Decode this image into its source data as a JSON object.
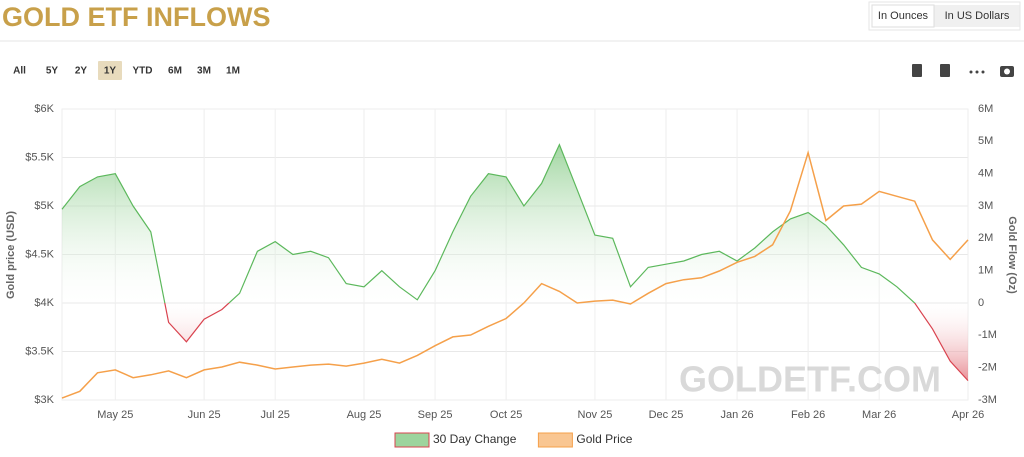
{
  "chart_data": {
    "type": "area-line",
    "title": "GOLD ETF INFLOWS",
    "y_label": "Gold price (USD)",
    "y2_label": "Gold Flow (Oz)",
    "watermark": "GOLDETF.COM",
    "categories": [
      null,
      null,
      null,
      "May 25",
      null,
      null,
      null,
      null,
      "Jun 25",
      null,
      null,
      null,
      "Jul 25",
      null,
      null,
      null,
      null,
      "Aug 25",
      null,
      null,
      null,
      "Sep 25",
      null,
      null,
      null,
      "Oct 25",
      null,
      null,
      null,
      null,
      "Nov 25",
      null,
      null,
      null,
      "Dec 25",
      null,
      null,
      null,
      "Jan 26",
      null,
      null,
      null,
      "Feb 26",
      null,
      null,
      null,
      "Mar 26",
      null,
      null,
      null,
      null,
      "Apr 26"
    ],
    "series": [
      {
        "name": "30 Day Change",
        "color": "#5cb85c",
        "negative_color": "#d9434f",
        "axis": "y2",
        "style": "area",
        "values": [
          2900000,
          3600000,
          3900000,
          4000000,
          3000000,
          2200000,
          -600000,
          -1200000,
          -500000,
          -200000,
          300000,
          1600000,
          1900000,
          1500000,
          1600000,
          1400000,
          600000,
          500000,
          1000000,
          500000,
          100000,
          1000000,
          2200000,
          3300000,
          4000000,
          3900000,
          3000000,
          3700000,
          4900000,
          3500000,
          2100000,
          2000000,
          500000,
          1100000,
          1200000,
          1300000,
          1500000,
          1600000,
          1300000,
          1700000,
          2200000,
          2600000,
          2800000,
          2400000,
          1800000,
          1100000,
          900000,
          500000,
          0,
          -800000,
          -1800000,
          -2400000
        ]
      },
      {
        "name": "Gold Price",
        "color": "#f5a04a",
        "style": "line",
        "values": [
          3020,
          3090,
          3280,
          3310,
          3230,
          3260,
          3300,
          3230,
          3310,
          3340,
          3390,
          3360,
          3320,
          3340,
          3360,
          3370,
          3350,
          3380,
          3420,
          3380,
          3460,
          3560,
          3650,
          3670,
          3760,
          3840,
          4000,
          4200,
          4120,
          4000,
          4020,
          4030,
          3990,
          4100,
          4200,
          4240,
          4260,
          4330,
          4420,
          4480,
          4600,
          4950,
          5550,
          4850,
          5000,
          5020,
          5150,
          5100,
          5050,
          4650,
          4450,
          4650
        ]
      }
    ],
    "ylim": [
      3000,
      6000
    ],
    "yticks": [
      {
        "value": 3000,
        "label": "$3K"
      },
      {
        "value": 3500,
        "label": "$3.5K"
      },
      {
        "value": 4000,
        "label": "$4K"
      },
      {
        "value": 4500,
        "label": "$4.5K"
      },
      {
        "value": 5000,
        "label": "$5K"
      },
      {
        "value": 5500,
        "label": "$5.5K"
      },
      {
        "value": 6000,
        "label": "$6K"
      }
    ],
    "y2lim": [
      -3000000,
      6000000
    ],
    "y2ticks": [
      {
        "value": -3000000,
        "label": "-3M"
      },
      {
        "value": -2000000,
        "label": "-2M"
      },
      {
        "value": -1000000,
        "label": "-1M"
      },
      0,
      {
        "value": 1000000,
        "label": "1M"
      },
      {
        "value": 2000000,
        "label": "2M"
      },
      {
        "value": 3000000,
        "label": "3M"
      },
      {
        "value": 4000000,
        "label": "4M"
      },
      {
        "value": 5000000,
        "label": "5M"
      },
      {
        "value": 6000000,
        "label": "6M"
      }
    ],
    "grid": true,
    "legend": "bottom"
  },
  "controls": {
    "units": [
      "In Ounces",
      "In US Dollars"
    ],
    "selected_unit": "In Ounces",
    "ranges": [
      "All",
      "5Y",
      "2Y",
      "1Y",
      "YTD",
      "6M",
      "3M",
      "1M"
    ],
    "selected_range": "1Y"
  }
}
